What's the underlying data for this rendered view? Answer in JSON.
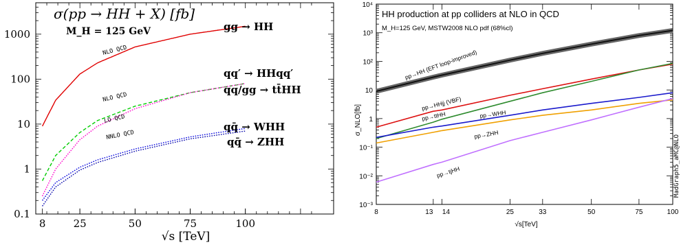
{
  "chart_data": [
    {
      "type": "line",
      "title": "σ(pp → HH + X) [fb]",
      "subtitle": "M_H = 125 GeV",
      "xlabel": "√s [TeV]",
      "ylabel": "",
      "xlim": [
        5,
        140
      ],
      "ylim": [
        0.1,
        5000
      ],
      "yscale": "log",
      "x_ticks": [
        "8",
        "25",
        "50",
        "75",
        "100"
      ],
      "y_ticks": [
        "0.1",
        "1",
        "10",
        "100",
        "1000"
      ],
      "series": [
        {
          "name": "gg → HH",
          "order_label": "NLO QCD",
          "color": "#e00000",
          "dash": "solid",
          "x": [
            8,
            14,
            25,
            33,
            50,
            75,
            100
          ],
          "values": [
            9,
            34,
            130,
            230,
            520,
            1000,
            1500
          ]
        },
        {
          "name": "qq′ → HHqq′",
          "order_label": "NLO QCD",
          "color": "#00cc00",
          "dash": "dashed",
          "x": [
            8,
            14,
            25,
            33,
            50,
            75,
            100
          ],
          "values": [
            0.55,
            2.0,
            6.5,
            12,
            25,
            50,
            80
          ]
        },
        {
          "name": "qq/gg → tt̄HH",
          "order_label": "LO QCD",
          "color": "#ff00cc",
          "dash": "dotted",
          "x": [
            8,
            14,
            25,
            33,
            50,
            75,
            100
          ],
          "values": [
            0.25,
            1.0,
            4.5,
            9,
            22,
            50,
            80
          ]
        },
        {
          "name": "qq̄ → WHH",
          "order_label": "NNLO QCD",
          "color": "#0000dd",
          "dash": "dotted",
          "x": [
            8,
            14,
            25,
            33,
            50,
            75,
            100
          ],
          "values": [
            0.2,
            0.5,
            1.1,
            1.6,
            2.8,
            5.2,
            8
          ]
        },
        {
          "name": "qq̄ → ZHH",
          "order_label": "",
          "color": "#0000aa",
          "dash": "dotted",
          "x": [
            8,
            14,
            25,
            33,
            50,
            75,
            100
          ],
          "values": [
            0.15,
            0.4,
            0.95,
            1.4,
            2.5,
            4.7,
            7
          ]
        }
      ]
    },
    {
      "type": "line",
      "title": "HH production at pp colliders at NLO in QCD",
      "subtitle": "M_H=125 GeV, MSTW2008 NLO pdf (68%cl)",
      "xlabel": "√s[TeV]",
      "ylabel": "σ_NLO[fb]",
      "side_label": "MadGraph5_aMC@NLO",
      "xscale": "log",
      "yscale": "log",
      "xlim": [
        8,
        100
      ],
      "ylim": [
        0.001,
        10000
      ],
      "x_ticks": [
        "8",
        "13",
        "14",
        "25",
        "33",
        "50",
        "75",
        "100"
      ],
      "y_ticks": [
        "10⁻³",
        "10⁻²",
        "10⁻¹",
        "1",
        "10",
        "10²",
        "10³",
        "10⁴"
      ],
      "series": [
        {
          "name": "pp→HH (EFT loop-improved)",
          "color": "#222222",
          "x": [
            8,
            13,
            14,
            25,
            33,
            50,
            75,
            100
          ],
          "values": [
            9,
            28,
            33,
            110,
            190,
            400,
            800,
            1200
          ]
        },
        {
          "name": "pp→HHjj (VBF)",
          "color": "#dd1111",
          "x": [
            8,
            13,
            14,
            25,
            33,
            50,
            75,
            100
          ],
          "values": [
            0.5,
            1.8,
            2.0,
            6.5,
            11,
            24,
            50,
            80
          ]
        },
        {
          "name": "pp→ttHH",
          "color": "#2e8b2e",
          "x": [
            8,
            13,
            14,
            25,
            33,
            50,
            75,
            100
          ],
          "values": [
            0.2,
            0.75,
            0.95,
            4.0,
            8,
            20,
            50,
            85
          ]
        },
        {
          "name": "pp→WHH",
          "color": "#1a1acc",
          "x": [
            8,
            13,
            14,
            25,
            33,
            50,
            75,
            100
          ],
          "values": [
            0.22,
            0.5,
            0.55,
            1.3,
            2.0,
            3.4,
            5.5,
            8
          ]
        },
        {
          "name": "pp→ZHH",
          "color": "#f0a000",
          "x": [
            8,
            13,
            14,
            25,
            33,
            50,
            75,
            100
          ],
          "values": [
            0.14,
            0.33,
            0.38,
            0.9,
            1.3,
            2.0,
            3.4,
            4.5
          ]
        },
        {
          "name": "pp→tjHH",
          "color": "#c070ff",
          "x": [
            8,
            13,
            14,
            25,
            33,
            50,
            75,
            100
          ],
          "values": [
            0.006,
            0.025,
            0.03,
            0.17,
            0.33,
            0.9,
            2.5,
            5
          ]
        }
      ]
    }
  ]
}
